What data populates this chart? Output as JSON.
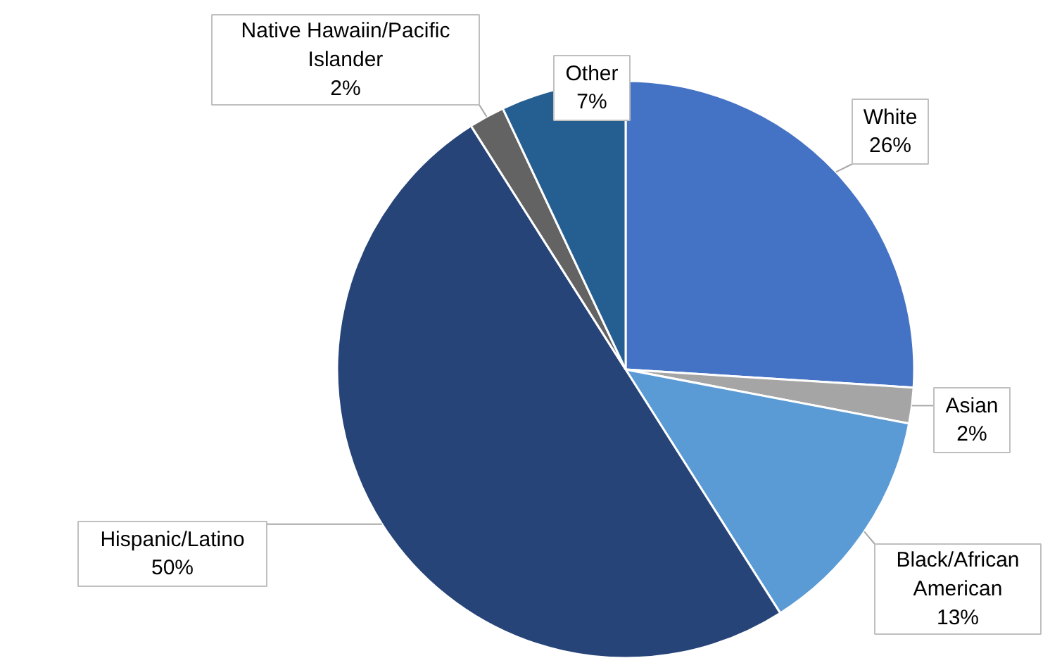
{
  "chart_data": {
    "type": "pie",
    "categories": [
      "White",
      "Asian",
      "Black/African American",
      "Hispanic/Latino",
      "Native Hawaiin/Pacific Islander",
      "Other"
    ],
    "values": [
      26,
      2,
      13,
      50,
      2,
      7
    ],
    "value_labels": [
      "26%",
      "2%",
      "13%",
      "50%",
      "2%",
      "7%"
    ],
    "colors": [
      "#4472c4",
      "#a5a5a5",
      "#5b9bd5",
      "#264478",
      "#636363",
      "#255e91"
    ]
  }
}
